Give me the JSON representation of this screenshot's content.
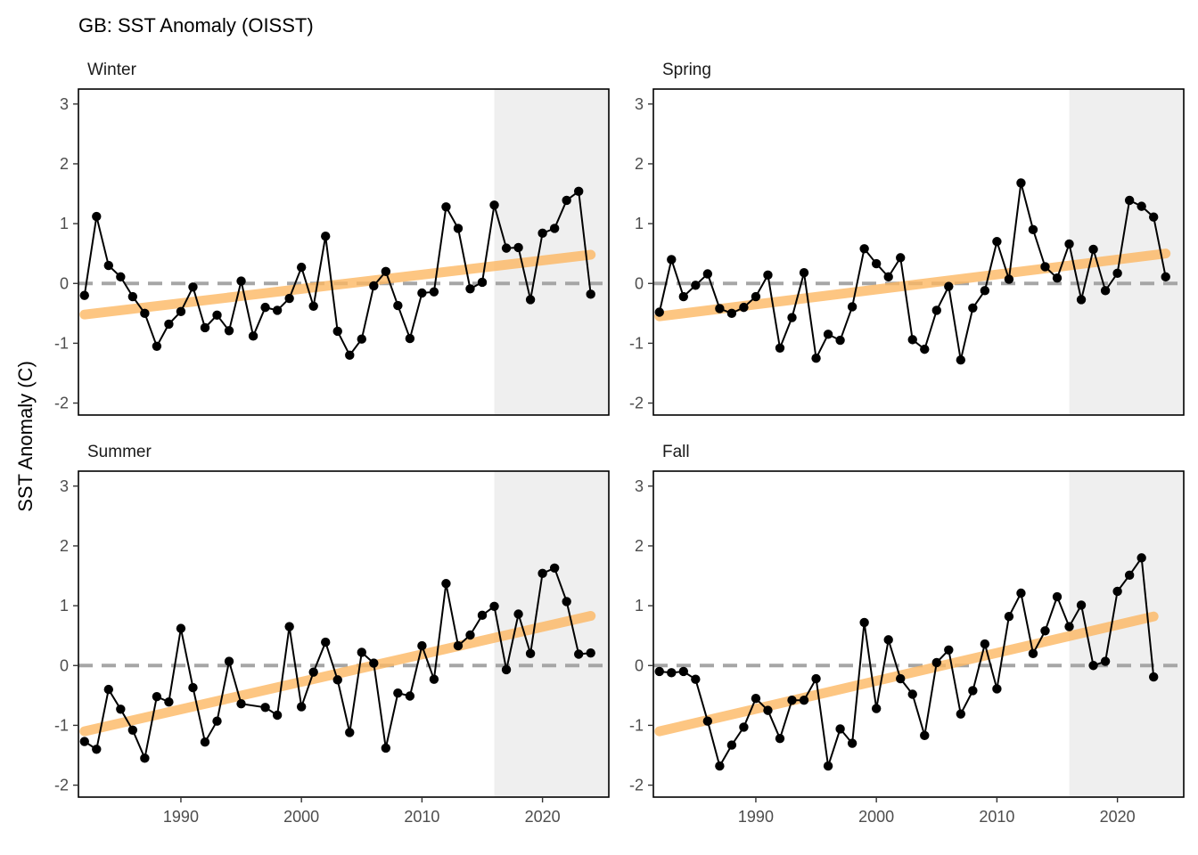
{
  "title": "GB: SST Anomaly (OISST)",
  "ylabel": "SST Anomaly (C)",
  "colors": {
    "trend": "#FDB863",
    "shade": "#EFEFEF",
    "zero_line": "#A6A6A6",
    "points": "#000000"
  },
  "chart_data": [
    {
      "type": "line",
      "panel": "Winter",
      "xlim": [
        1981.5,
        2025.5
      ],
      "ylim": [
        -2.2,
        3.25
      ],
      "xticks": [
        1990,
        2000,
        2010,
        2020
      ],
      "yticks": [
        -2,
        -1,
        0,
        1,
        2,
        3
      ],
      "shaded_x": [
        2016,
        2025.5
      ],
      "reference_y": 0,
      "trend": {
        "x": [
          1982,
          2024
        ],
        "y": [
          -0.52,
          0.48
        ]
      },
      "x": [
        1982,
        1983,
        1984,
        1985,
        1986,
        1987,
        1988,
        1989,
        1990,
        1991,
        1992,
        1993,
        1994,
        1995,
        1996,
        1997,
        1998,
        1999,
        2000,
        2001,
        2002,
        2003,
        2004,
        2005,
        2006,
        2007,
        2008,
        2009,
        2010,
        2011,
        2012,
        2013,
        2014,
        2015,
        2016,
        2017,
        2018,
        2019,
        2020,
        2021,
        2022,
        2023,
        2024
      ],
      "y": [
        -0.2,
        1.12,
        0.3,
        0.11,
        -0.22,
        -0.5,
        -1.05,
        -0.68,
        -0.47,
        -0.06,
        -0.74,
        -0.53,
        -0.79,
        0.04,
        -0.88,
        -0.4,
        -0.45,
        -0.25,
        0.27,
        -0.38,
        0.79,
        -0.8,
        -1.2,
        -0.93,
        -0.04,
        0.2,
        -0.37,
        -0.92,
        -0.16,
        -0.14,
        1.28,
        0.92,
        -0.09,
        0.02,
        1.31,
        0.59,
        0.6,
        -0.27,
        0.84,
        0.92,
        1.39,
        1.54,
        -0.18
      ]
    },
    {
      "type": "line",
      "panel": "Spring",
      "xlim": [
        1981.5,
        2025.5
      ],
      "ylim": [
        -2.2,
        3.25
      ],
      "xticks": [
        1990,
        2000,
        2010,
        2020
      ],
      "yticks": [
        -2,
        -1,
        0,
        1,
        2,
        3
      ],
      "shaded_x": [
        2016,
        2025.5
      ],
      "reference_y": 0,
      "trend": {
        "x": [
          1982,
          2024
        ],
        "y": [
          -0.55,
          0.5
        ]
      },
      "x": [
        1982,
        1983,
        1984,
        1985,
        1986,
        1987,
        1988,
        1989,
        1990,
        1991,
        1992,
        1993,
        1994,
        1995,
        1996,
        1997,
        1998,
        1999,
        2000,
        2001,
        2002,
        2003,
        2004,
        2005,
        2006,
        2007,
        2008,
        2009,
        2010,
        2011,
        2012,
        2013,
        2014,
        2015,
        2016,
        2017,
        2018,
        2019,
        2020,
        2021,
        2022,
        2023,
        2024
      ],
      "y": [
        -0.48,
        0.4,
        -0.22,
        -0.03,
        0.16,
        -0.42,
        -0.5,
        -0.4,
        -0.22,
        0.14,
        -1.08,
        -0.57,
        0.18,
        -1.25,
        -0.85,
        -0.95,
        -0.39,
        0.58,
        0.33,
        0.11,
        0.43,
        -0.94,
        -1.1,
        -0.45,
        -0.05,
        -1.28,
        -0.41,
        -0.12,
        0.7,
        0.07,
        1.68,
        0.9,
        0.28,
        0.09,
        0.66,
        -0.27,
        0.57,
        -0.12,
        0.17,
        1.39,
        1.29,
        1.11,
        0.11
      ]
    },
    {
      "type": "line",
      "panel": "Summer",
      "xlim": [
        1981.5,
        2025.5
      ],
      "ylim": [
        -2.2,
        3.25
      ],
      "xticks": [
        1990,
        2000,
        2010,
        2020
      ],
      "yticks": [
        -2,
        -1,
        0,
        1,
        2,
        3
      ],
      "shaded_x": [
        2016,
        2025.5
      ],
      "reference_y": 0,
      "trend": {
        "x": [
          1982,
          2024
        ],
        "y": [
          -1.1,
          0.83
        ]
      },
      "x": [
        1982,
        1983,
        1984,
        1985,
        1986,
        1987,
        1988,
        1989,
        1990,
        1991,
        1992,
        1993,
        1994,
        1995,
        1997,
        1998,
        1999,
        2000,
        2001,
        2002,
        2003,
        2004,
        2005,
        2006,
        2007,
        2008,
        2009,
        2010,
        2011,
        2012,
        2013,
        2014,
        2015,
        2016,
        2017,
        2018,
        2019,
        2020,
        2021,
        2022,
        2023,
        2024
      ],
      "y": [
        -1.27,
        -1.4,
        -0.4,
        -0.73,
        -1.08,
        -1.55,
        -0.52,
        -0.61,
        0.62,
        -0.37,
        -1.28,
        -0.93,
        0.07,
        -0.64,
        -0.7,
        -0.83,
        0.65,
        -0.69,
        -0.11,
        0.39,
        -0.24,
        -1.12,
        0.22,
        0.04,
        -1.38,
        -0.46,
        -0.51,
        0.33,
        -0.23,
        1.37,
        0.33,
        0.51,
        0.84,
        0.99,
        -0.07,
        0.86,
        0.2,
        1.54,
        1.63,
        1.07,
        0.19,
        0.21
      ]
    },
    {
      "type": "line",
      "panel": "Fall",
      "xlim": [
        1981.5,
        2025.5
      ],
      "ylim": [
        -2.2,
        3.25
      ],
      "xticks": [
        1990,
        2000,
        2010,
        2020
      ],
      "yticks": [
        -2,
        -1,
        0,
        1,
        2,
        3
      ],
      "shaded_x": [
        2016,
        2025.5
      ],
      "reference_y": 0,
      "trend": {
        "x": [
          1982,
          2023
        ],
        "y": [
          -1.1,
          0.82
        ]
      },
      "x": [
        1982,
        1983,
        1984,
        1985,
        1986,
        1987,
        1988,
        1989,
        1990,
        1991,
        1992,
        1993,
        1994,
        1995,
        1996,
        1997,
        1998,
        1999,
        2000,
        2001,
        2002,
        2003,
        2004,
        2005,
        2006,
        2007,
        2008,
        2009,
        2010,
        2011,
        2012,
        2013,
        2014,
        2015,
        2016,
        2017,
        2018,
        2019,
        2020,
        2021,
        2022,
        2023
      ],
      "y": [
        -0.1,
        -0.12,
        -0.1,
        -0.23,
        -0.93,
        -1.68,
        -1.33,
        -1.03,
        -0.55,
        -0.75,
        -1.22,
        -0.58,
        -0.58,
        -0.22,
        -1.68,
        -1.06,
        -1.3,
        0.72,
        -0.72,
        0.43,
        -0.22,
        -0.48,
        -1.17,
        0.05,
        0.26,
        -0.81,
        -0.42,
        0.36,
        -0.39,
        0.82,
        1.21,
        0.2,
        0.58,
        1.15,
        0.65,
        1.01,
        0.0,
        0.07,
        1.24,
        1.51,
        1.8,
        -0.19
      ]
    }
  ]
}
